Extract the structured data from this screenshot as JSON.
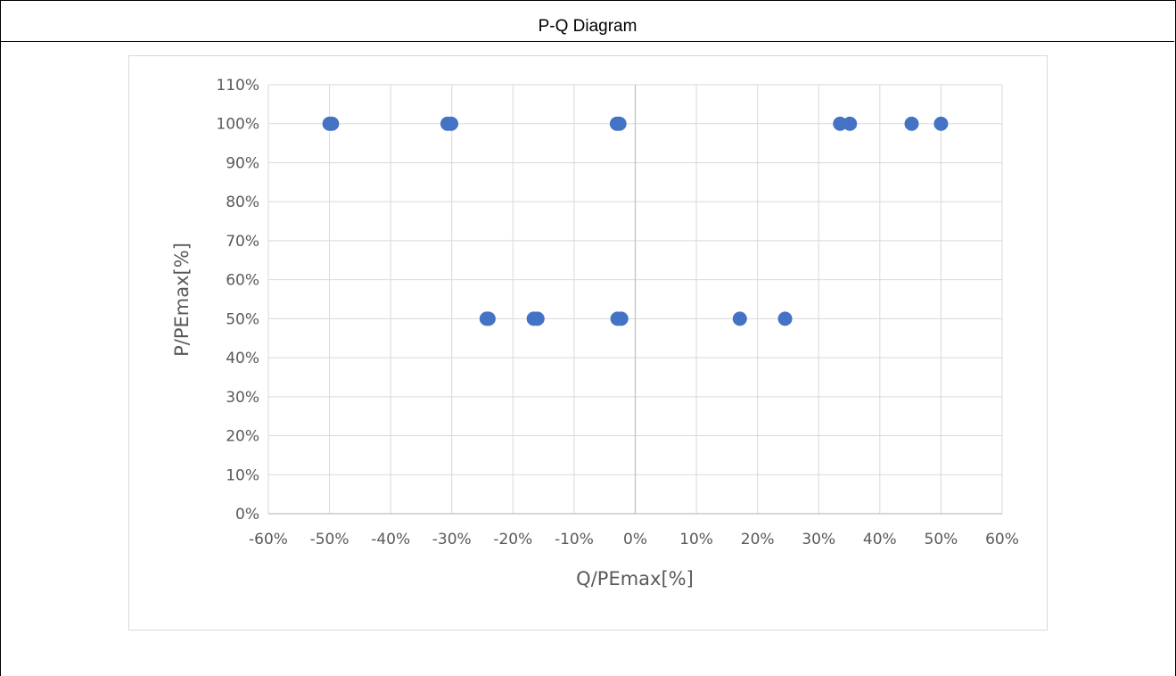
{
  "page": {
    "title": "P-Q Diagram"
  },
  "chart_data": {
    "type": "scatter",
    "xlabel": "Q/PEmax[%]",
    "ylabel": "P/PEmax[%]",
    "xlim": [
      -60,
      60
    ],
    "ylim": [
      0,
      110
    ],
    "x_ticks": [
      "-60%",
      "-50%",
      "-40%",
      "-30%",
      "-20%",
      "-10%",
      "0%",
      "10%",
      "20%",
      "30%",
      "40%",
      "50%",
      "60%"
    ],
    "y_ticks": [
      "0%",
      "10%",
      "20%",
      "30%",
      "40%",
      "50%",
      "60%",
      "70%",
      "80%",
      "90%",
      "100%",
      "110%"
    ],
    "grid": true,
    "marker_color": "#4472C4",
    "points": [
      {
        "x": -50.0,
        "y": 100
      },
      {
        "x": -49.6,
        "y": 100
      },
      {
        "x": -30.7,
        "y": 100
      },
      {
        "x": -30.1,
        "y": 100
      },
      {
        "x": -3.0,
        "y": 100
      },
      {
        "x": -2.6,
        "y": 100
      },
      {
        "x": 33.5,
        "y": 100
      },
      {
        "x": 35.1,
        "y": 100
      },
      {
        "x": 45.2,
        "y": 100
      },
      {
        "x": 50.0,
        "y": 100
      },
      {
        "x": -24.3,
        "y": 50
      },
      {
        "x": -24.0,
        "y": 50
      },
      {
        "x": -16.6,
        "y": 50
      },
      {
        "x": -16.0,
        "y": 50
      },
      {
        "x": -2.9,
        "y": 50
      },
      {
        "x": -2.3,
        "y": 50
      },
      {
        "x": 17.1,
        "y": 50
      },
      {
        "x": 24.5,
        "y": 50
      }
    ]
  }
}
